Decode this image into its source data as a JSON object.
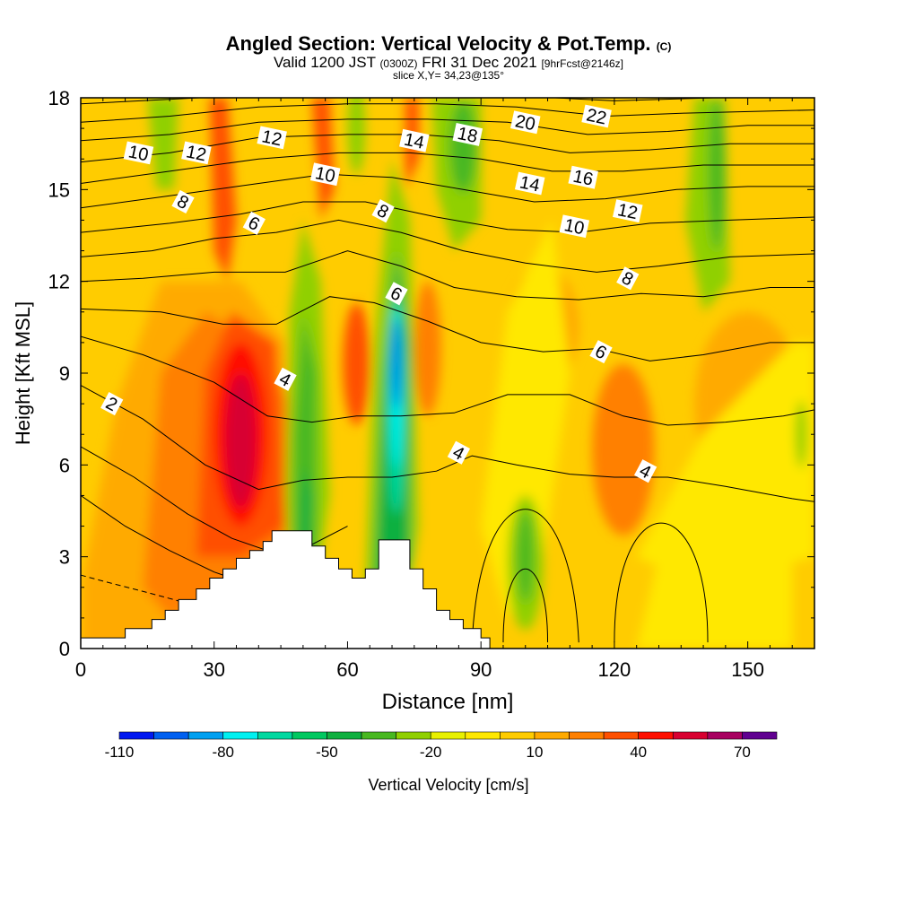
{
  "title": {
    "main": "Angled Section: Vertical Velocity & Pot.Temp.",
    "copyright": "(C)",
    "valid_prefix": "Valid 1200 JST",
    "valid_z": "(0300Z)",
    "valid_date": "FRI 31 Dec 2021",
    "forecast": "[9hrFcst@2146z]",
    "slice": "slice X,Y= 34,23@135°"
  },
  "chart_data": {
    "type": "heatmap",
    "xlabel": "Distance [nm]",
    "ylabel": "Height [Kft MSL]",
    "xlim": [
      0,
      165
    ],
    "ylim": [
      0,
      18
    ],
    "xticks": [
      0,
      30,
      60,
      90,
      120,
      150
    ],
    "yticks": [
      0,
      3,
      6,
      9,
      12,
      15,
      18
    ],
    "grid": false,
    "colorbar": {
      "label": "Vertical Velocity [cm/s]",
      "tick_labels": [
        "-110",
        "-80",
        "-50",
        "-20",
        "10",
        "40",
        "70"
      ],
      "tick_values": [
        -110,
        -80,
        -50,
        -20,
        10,
        40,
        70
      ],
      "levels": [
        -110,
        -100,
        -90,
        -80,
        -70,
        -60,
        -50,
        -40,
        -30,
        -20,
        -10,
        0,
        10,
        20,
        30,
        40,
        50,
        60,
        70,
        80
      ],
      "colors": [
        "#0018f0",
        "#0060f0",
        "#00a0f0",
        "#00f0f0",
        "#00d8a0",
        "#00c860",
        "#10b040",
        "#48b820",
        "#90d000",
        "#e8f000",
        "#ffe800",
        "#ffcc00",
        "#ffaa00",
        "#ff8000",
        "#ff5000",
        "#ff1000",
        "#d80030",
        "#a80060",
        "#600090"
      ]
    },
    "shaded_field_description": "Vertical velocity (cm/s) filled contours; narrow alternating up/downdraft bands between 45 and 80 nm",
    "velocity_features": [
      {
        "x": 36,
        "z": 7.0,
        "value": 45
      },
      {
        "x": 42,
        "z": 6.0,
        "value": 40
      },
      {
        "x": 51,
        "z": 5.5,
        "value": -45
      },
      {
        "x": 62,
        "z": 9.5,
        "value": 40
      },
      {
        "x": 71,
        "z": 9.5,
        "value": -110
      },
      {
        "x": 71,
        "z": 6.5,
        "value": -80
      },
      {
        "x": 78,
        "z": 10.0,
        "value": 35
      },
      {
        "x": 84,
        "z": 16.5,
        "value": -45
      },
      {
        "x": 100,
        "z": 3.5,
        "value": -40
      },
      {
        "x": 122,
        "z": 6.5,
        "value": 30
      },
      {
        "x": 142,
        "z": 14.0,
        "value": -30
      }
    ],
    "pot_temp_contour_labels": [
      {
        "text": "2",
        "x": 7,
        "z": 8.0
      },
      {
        "text": "4",
        "x": 46,
        "z": 8.8
      },
      {
        "text": "4",
        "x": 85,
        "z": 6.4
      },
      {
        "text": "4",
        "x": 127,
        "z": 5.8
      },
      {
        "text": "6",
        "x": 39,
        "z": 13.9
      },
      {
        "text": "6",
        "x": 71,
        "z": 11.6
      },
      {
        "text": "6",
        "x": 117,
        "z": 9.7
      },
      {
        "text": "8",
        "x": 23,
        "z": 14.6
      },
      {
        "text": "8",
        "x": 68,
        "z": 14.3
      },
      {
        "text": "8",
        "x": 123,
        "z": 12.1
      },
      {
        "text": "10",
        "x": 13,
        "z": 16.2
      },
      {
        "text": "10",
        "x": 55,
        "z": 15.5
      },
      {
        "text": "10",
        "x": 111,
        "z": 13.8
      },
      {
        "text": "12",
        "x": 26,
        "z": 16.2
      },
      {
        "text": "12",
        "x": 43,
        "z": 16.7
      },
      {
        "text": "12",
        "x": 123,
        "z": 14.3
      },
      {
        "text": "14",
        "x": 75,
        "z": 16.6
      },
      {
        "text": "14",
        "x": 101,
        "z": 15.2
      },
      {
        "text": "16",
        "x": 113,
        "z": 15.4
      },
      {
        "text": "18",
        "x": 87,
        "z": 16.8
      },
      {
        "text": "20",
        "x": 100,
        "z": 17.2
      },
      {
        "text": "22",
        "x": 116,
        "z": 17.4
      }
    ],
    "terrain_profile": [
      [
        0,
        0.35
      ],
      [
        10,
        0.35
      ],
      [
        10,
        0.65
      ],
      [
        16,
        0.65
      ],
      [
        16,
        0.95
      ],
      [
        19,
        0.95
      ],
      [
        19,
        1.25
      ],
      [
        22,
        1.25
      ],
      [
        22,
        1.6
      ],
      [
        26,
        1.6
      ],
      [
        26,
        1.95
      ],
      [
        29,
        1.95
      ],
      [
        29,
        2.3
      ],
      [
        32,
        2.3
      ],
      [
        32,
        2.6
      ],
      [
        35,
        2.6
      ],
      [
        35,
        2.95
      ],
      [
        38,
        2.95
      ],
      [
        38,
        3.2
      ],
      [
        41,
        3.2
      ],
      [
        41,
        3.5
      ],
      [
        43,
        3.5
      ],
      [
        43,
        3.85
      ],
      [
        52,
        3.85
      ],
      [
        52,
        3.35
      ],
      [
        55,
        3.35
      ],
      [
        55,
        2.95
      ],
      [
        58,
        2.95
      ],
      [
        58,
        2.6
      ],
      [
        61,
        2.6
      ],
      [
        61,
        2.3
      ],
      [
        64,
        2.3
      ],
      [
        64,
        2.6
      ],
      [
        67,
        2.6
      ],
      [
        67,
        3.55
      ],
      [
        74,
        3.55
      ],
      [
        74,
        2.6
      ],
      [
        77,
        2.6
      ],
      [
        77,
        1.95
      ],
      [
        80,
        1.95
      ],
      [
        80,
        1.25
      ],
      [
        83,
        1.25
      ],
      [
        83,
        0.95
      ],
      [
        86,
        0.95
      ],
      [
        86,
        0.65
      ],
      [
        90,
        0.65
      ],
      [
        90,
        0.35
      ],
      [
        92,
        0.35
      ],
      [
        92,
        0
      ],
      [
        165,
        0
      ]
    ]
  }
}
